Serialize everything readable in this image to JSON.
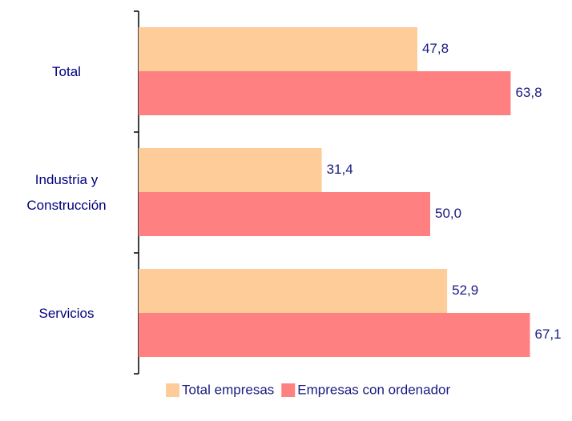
{
  "chart_data": {
    "type": "bar",
    "orientation": "horizontal",
    "categories": [
      "Total",
      "Industria y Construcción",
      "Servicios"
    ],
    "series": [
      {
        "name": "Total empresas",
        "color": "#fecc99",
        "values": [
          47.8,
          31.4,
          52.9
        ],
        "value_labels": [
          "47,8",
          "31,4",
          "52,9"
        ]
      },
      {
        "name": "Empresas con ordenador",
        "color": "#ff8080",
        "values": [
          63.8,
          50.0,
          67.1
        ],
        "value_labels": [
          "63,8",
          "50,0",
          "67,1"
        ]
      }
    ],
    "legend": "bottom"
  }
}
